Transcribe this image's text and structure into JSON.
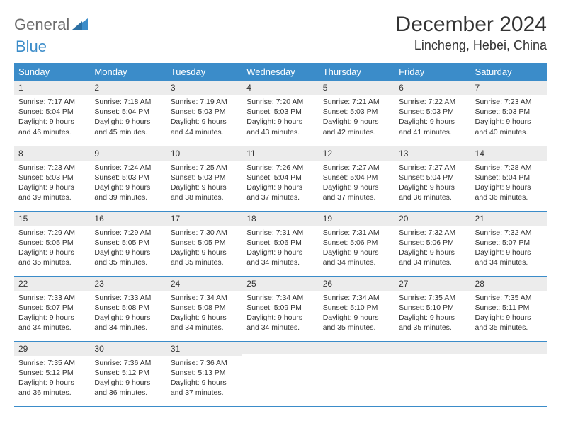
{
  "brand": {
    "part1": "General",
    "part2": "Blue"
  },
  "header": {
    "title": "December 2024",
    "location": "Lincheng, Hebei, China"
  },
  "colors": {
    "accent": "#3b8cc9",
    "header_bg": "#ececec",
    "text": "#333333",
    "logo_gray": "#6b6b6b",
    "background": "#ffffff"
  },
  "weekdays": [
    "Sunday",
    "Monday",
    "Tuesday",
    "Wednesday",
    "Thursday",
    "Friday",
    "Saturday"
  ],
  "weeks": [
    [
      {
        "n": "1",
        "sr": "7:17 AM",
        "ss": "5:04 PM",
        "dl": "9 hours and 46 minutes."
      },
      {
        "n": "2",
        "sr": "7:18 AM",
        "ss": "5:04 PM",
        "dl": "9 hours and 45 minutes."
      },
      {
        "n": "3",
        "sr": "7:19 AM",
        "ss": "5:03 PM",
        "dl": "9 hours and 44 minutes."
      },
      {
        "n": "4",
        "sr": "7:20 AM",
        "ss": "5:03 PM",
        "dl": "9 hours and 43 minutes."
      },
      {
        "n": "5",
        "sr": "7:21 AM",
        "ss": "5:03 PM",
        "dl": "9 hours and 42 minutes."
      },
      {
        "n": "6",
        "sr": "7:22 AM",
        "ss": "5:03 PM",
        "dl": "9 hours and 41 minutes."
      },
      {
        "n": "7",
        "sr": "7:23 AM",
        "ss": "5:03 PM",
        "dl": "9 hours and 40 minutes."
      }
    ],
    [
      {
        "n": "8",
        "sr": "7:23 AM",
        "ss": "5:03 PM",
        "dl": "9 hours and 39 minutes."
      },
      {
        "n": "9",
        "sr": "7:24 AM",
        "ss": "5:03 PM",
        "dl": "9 hours and 39 minutes."
      },
      {
        "n": "10",
        "sr": "7:25 AM",
        "ss": "5:03 PM",
        "dl": "9 hours and 38 minutes."
      },
      {
        "n": "11",
        "sr": "7:26 AM",
        "ss": "5:04 PM",
        "dl": "9 hours and 37 minutes."
      },
      {
        "n": "12",
        "sr": "7:27 AM",
        "ss": "5:04 PM",
        "dl": "9 hours and 37 minutes."
      },
      {
        "n": "13",
        "sr": "7:27 AM",
        "ss": "5:04 PM",
        "dl": "9 hours and 36 minutes."
      },
      {
        "n": "14",
        "sr": "7:28 AM",
        "ss": "5:04 PM",
        "dl": "9 hours and 36 minutes."
      }
    ],
    [
      {
        "n": "15",
        "sr": "7:29 AM",
        "ss": "5:05 PM",
        "dl": "9 hours and 35 minutes."
      },
      {
        "n": "16",
        "sr": "7:29 AM",
        "ss": "5:05 PM",
        "dl": "9 hours and 35 minutes."
      },
      {
        "n": "17",
        "sr": "7:30 AM",
        "ss": "5:05 PM",
        "dl": "9 hours and 35 minutes."
      },
      {
        "n": "18",
        "sr": "7:31 AM",
        "ss": "5:06 PM",
        "dl": "9 hours and 34 minutes."
      },
      {
        "n": "19",
        "sr": "7:31 AM",
        "ss": "5:06 PM",
        "dl": "9 hours and 34 minutes."
      },
      {
        "n": "20",
        "sr": "7:32 AM",
        "ss": "5:06 PM",
        "dl": "9 hours and 34 minutes."
      },
      {
        "n": "21",
        "sr": "7:32 AM",
        "ss": "5:07 PM",
        "dl": "9 hours and 34 minutes."
      }
    ],
    [
      {
        "n": "22",
        "sr": "7:33 AM",
        "ss": "5:07 PM",
        "dl": "9 hours and 34 minutes."
      },
      {
        "n": "23",
        "sr": "7:33 AM",
        "ss": "5:08 PM",
        "dl": "9 hours and 34 minutes."
      },
      {
        "n": "24",
        "sr": "7:34 AM",
        "ss": "5:08 PM",
        "dl": "9 hours and 34 minutes."
      },
      {
        "n": "25",
        "sr": "7:34 AM",
        "ss": "5:09 PM",
        "dl": "9 hours and 34 minutes."
      },
      {
        "n": "26",
        "sr": "7:34 AM",
        "ss": "5:10 PM",
        "dl": "9 hours and 35 minutes."
      },
      {
        "n": "27",
        "sr": "7:35 AM",
        "ss": "5:10 PM",
        "dl": "9 hours and 35 minutes."
      },
      {
        "n": "28",
        "sr": "7:35 AM",
        "ss": "5:11 PM",
        "dl": "9 hours and 35 minutes."
      }
    ],
    [
      {
        "n": "29",
        "sr": "7:35 AM",
        "ss": "5:12 PM",
        "dl": "9 hours and 36 minutes."
      },
      {
        "n": "30",
        "sr": "7:36 AM",
        "ss": "5:12 PM",
        "dl": "9 hours and 36 minutes."
      },
      {
        "n": "31",
        "sr": "7:36 AM",
        "ss": "5:13 PM",
        "dl": "9 hours and 37 minutes."
      },
      null,
      null,
      null,
      null
    ]
  ],
  "labels": {
    "sunrise": "Sunrise: ",
    "sunset": "Sunset: ",
    "daylight": "Daylight: "
  }
}
